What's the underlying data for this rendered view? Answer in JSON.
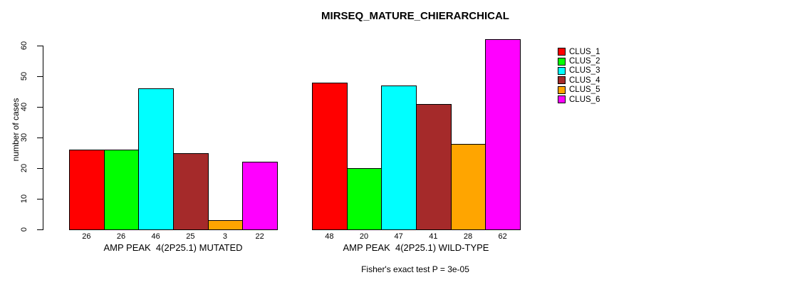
{
  "chart_data": {
    "type": "bar",
    "title": "MIRSEQ_MATURE_CHIERARCHICAL",
    "ylabel": "number of cases",
    "xlabel": "",
    "categories": [
      "AMP PEAK  4(2P25.1) MUTATED",
      "AMP PEAK  4(2P25.1) WILD-TYPE"
    ],
    "series": [
      {
        "name": "CLUS_1",
        "color": "#FF0000",
        "values": [
          26,
          48
        ]
      },
      {
        "name": "CLUS_2",
        "color": "#00FF00",
        "values": [
          26,
          20
        ]
      },
      {
        "name": "CLUS_3",
        "color": "#00FFFF",
        "values": [
          46,
          47
        ]
      },
      {
        "name": "CLUS_4",
        "color": "#A52A2A",
        "values": [
          25,
          41
        ]
      },
      {
        "name": "CLUS_5",
        "color": "#FFA500",
        "values": [
          3,
          28
        ]
      },
      {
        "name": "CLUS_6",
        "color": "#FF00FF",
        "values": [
          22,
          62
        ]
      }
    ],
    "yticks": [
      0,
      10,
      20,
      30,
      40,
      50,
      60
    ],
    "ylim": [
      0,
      62
    ],
    "grid": false,
    "legend_position": "right",
    "bar_border_color": "#000000",
    "bar_value_labels_shown": true,
    "annotation": "Fisher's exact test P = 3e-05"
  }
}
